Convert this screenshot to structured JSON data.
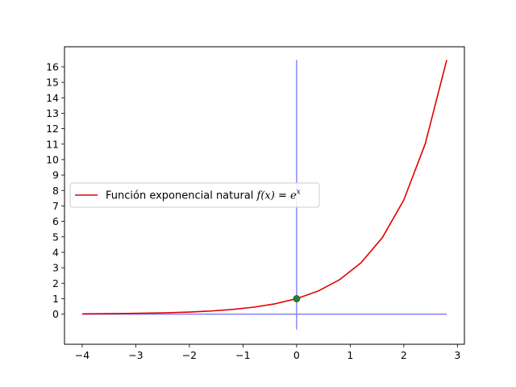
{
  "chart_data": {
    "type": "line",
    "title": "",
    "xlabel": "",
    "ylabel": "",
    "xlim": [
      -4.33,
      3.13
    ],
    "ylim": [
      -1.95,
      17.3
    ],
    "x_ticks": [
      -4,
      -3,
      -2,
      -1,
      0,
      1,
      2,
      3
    ],
    "x_tick_labels": [
      "−4",
      "−3",
      "−2",
      "−1",
      "0",
      "1",
      "2",
      "3"
    ],
    "y_ticks": [
      0,
      1,
      2,
      3,
      4,
      5,
      6,
      7,
      8,
      9,
      10,
      11,
      12,
      13,
      14,
      15,
      16
    ],
    "y_tick_labels": [
      "0",
      "1",
      "2",
      "3",
      "4",
      "5",
      "6",
      "7",
      "8",
      "9",
      "10",
      "11",
      "12",
      "13",
      "14",
      "15",
      "16"
    ],
    "grid": false,
    "legend_position": "center-left",
    "series": [
      {
        "name": "Función exponencial natural f(x) = e^x",
        "color": "#e00000",
        "x": [
          -4.0,
          -3.6,
          -3.2,
          -2.8,
          -2.4,
          -2.0,
          -1.6,
          -1.2,
          -0.8,
          -0.4,
          0.0,
          0.4,
          0.8,
          1.2,
          1.6,
          2.0,
          2.4,
          2.8
        ],
        "y": [
          0.018,
          0.027,
          0.041,
          0.061,
          0.091,
          0.135,
          0.202,
          0.301,
          0.449,
          0.67,
          1.0,
          1.492,
          2.226,
          3.32,
          4.953,
          7.389,
          11.023,
          16.445
        ]
      }
    ],
    "reference_lines": [
      {
        "orientation": "horizontal",
        "y": 0,
        "x_from": -4.0,
        "x_to": 2.8,
        "color": "#8080ff"
      },
      {
        "orientation": "vertical",
        "x": 0,
        "y_from": -1.0,
        "y_to": 16.445,
        "color": "#8080ff"
      }
    ],
    "highlighted_point": {
      "x": 0,
      "y": 1,
      "color": "#2e7d32"
    }
  },
  "legend": {
    "label_prefix": "Función exponencial natural ",
    "label_fx": "f(x)",
    "label_eq": " = ",
    "label_base": "e",
    "label_exp": "x"
  }
}
